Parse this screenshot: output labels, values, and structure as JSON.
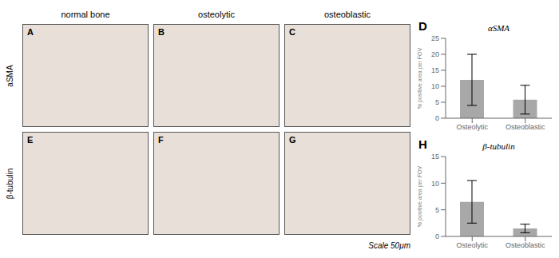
{
  "chart_data": [
    {
      "type": "bar",
      "title": "αSMA",
      "annotations": [
        "D"
      ],
      "categories": [
        "Osteolytic",
        "Osteoblastic"
      ],
      "values": [
        12.0,
        5.8
      ],
      "errors": [
        8.0,
        4.5
      ],
      "color": "#a8a8a8",
      "ylabel": "% positive area per FOV",
      "ylim": [
        0,
        25
      ],
      "yticks": [
        0,
        5,
        10,
        15,
        20,
        25
      ]
    },
    {
      "type": "bar",
      "title": "β-tubulin",
      "annotations": [
        "H"
      ],
      "categories": [
        "Osteolytic",
        "Osteoblastic"
      ],
      "values": [
        6.5,
        1.5
      ],
      "errors": [
        4.0,
        0.8
      ],
      "color": "#a8a8a8",
      "ylabel": "% positive area per FOV",
      "ylim": [
        0,
        15
      ],
      "yticks": [
        0,
        5,
        10,
        15
      ]
    }
  ],
  "annotations": [
    "normal bone",
    "osteolytic",
    "osteoblastic",
    "A",
    "B",
    "C",
    "E",
    "F",
    "G",
    "aSMA",
    "β-tubulin",
    "Scale 50μm"
  ]
}
